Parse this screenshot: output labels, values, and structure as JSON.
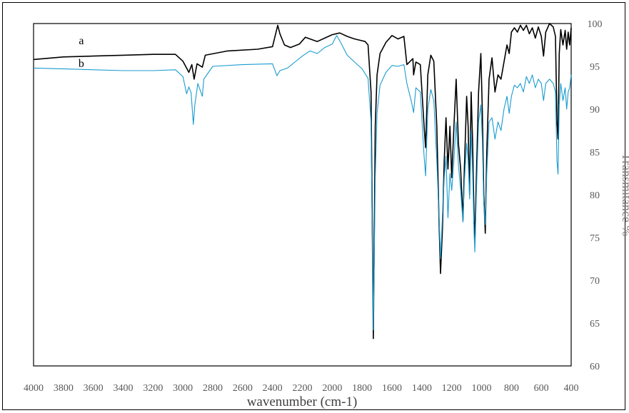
{
  "chart_data": {
    "type": "line",
    "title": "",
    "xlabel": "wavenumber (cm-1)",
    "ylabel": "Transmitance %",
    "xlim": [
      4000,
      400
    ],
    "ylim": [
      60,
      100
    ],
    "x_reversed": true,
    "y_axis_side": "right",
    "x_ticks": [
      4000,
      3800,
      3600,
      3400,
      3200,
      3000,
      2800,
      2600,
      2400,
      2200,
      2000,
      1800,
      1600,
      1400,
      1200,
      1000,
      800,
      600,
      400
    ],
    "y_ticks": [
      60,
      65,
      70,
      75,
      80,
      85,
      90,
      95,
      100
    ],
    "grid": false,
    "series": [
      {
        "name": "a",
        "color": "#000000",
        "points": [
          [
            4000,
            95.8
          ],
          [
            3800,
            96.1
          ],
          [
            3600,
            96.2
          ],
          [
            3400,
            96.3
          ],
          [
            3200,
            96.4
          ],
          [
            3050,
            96.4
          ],
          [
            3000,
            95.6
          ],
          [
            2960,
            94.3
          ],
          [
            2940,
            95.2
          ],
          [
            2925,
            93.5
          ],
          [
            2905,
            95.3
          ],
          [
            2870,
            94.9
          ],
          [
            2850,
            96.3
          ],
          [
            2700,
            96.8
          ],
          [
            2500,
            97.0
          ],
          [
            2400,
            97.3
          ],
          [
            2365,
            99.8
          ],
          [
            2350,
            98.8
          ],
          [
            2320,
            97.5
          ],
          [
            2280,
            97.2
          ],
          [
            2220,
            97.6
          ],
          [
            2180,
            98.4
          ],
          [
            2100,
            97.9
          ],
          [
            2050,
            98.3
          ],
          [
            2000,
            98.7
          ],
          [
            1950,
            98.9
          ],
          [
            1900,
            98.5
          ],
          [
            1850,
            98.2
          ],
          [
            1780,
            97.9
          ],
          [
            1760,
            97.5
          ],
          [
            1740,
            92.0
          ],
          [
            1725,
            63.2
          ],
          [
            1712,
            88.0
          ],
          [
            1700,
            94.0
          ],
          [
            1680,
            96.5
          ],
          [
            1640,
            97.8
          ],
          [
            1600,
            98.6
          ],
          [
            1560,
            98.2
          ],
          [
            1520,
            98.5
          ],
          [
            1500,
            95.2
          ],
          [
            1460,
            95.9
          ],
          [
            1455,
            94.0
          ],
          [
            1440,
            95.5
          ],
          [
            1410,
            95.2
          ],
          [
            1385,
            88.0
          ],
          [
            1375,
            85.5
          ],
          [
            1360,
            94.0
          ],
          [
            1340,
            96.3
          ],
          [
            1320,
            95.6
          ],
          [
            1300,
            88.0
          ],
          [
            1285,
            77.0
          ],
          [
            1275,
            70.8
          ],
          [
            1262,
            76.0
          ],
          [
            1250,
            84.0
          ],
          [
            1238,
            89.0
          ],
          [
            1225,
            83.0
          ],
          [
            1212,
            88.0
          ],
          [
            1200,
            82.0
          ],
          [
            1185,
            88.0
          ],
          [
            1170,
            93.5
          ],
          [
            1155,
            86.0
          ],
          [
            1140,
            83.0
          ],
          [
            1125,
            77.0
          ],
          [
            1115,
            83.0
          ],
          [
            1100,
            91.5
          ],
          [
            1090,
            88.0
          ],
          [
            1080,
            80.0
          ],
          [
            1070,
            92.0
          ],
          [
            1060,
            86.0
          ],
          [
            1050,
            77.0
          ],
          [
            1045,
            74.5
          ],
          [
            1035,
            82.0
          ],
          [
            1020,
            92.0
          ],
          [
            1005,
            96.5
          ],
          [
            995,
            90.0
          ],
          [
            985,
            80.0
          ],
          [
            975,
            75.5
          ],
          [
            965,
            85.0
          ],
          [
            950,
            93.5
          ],
          [
            930,
            96.0
          ],
          [
            910,
            92.0
          ],
          [
            890,
            94.0
          ],
          [
            870,
            93.5
          ],
          [
            850,
            95.5
          ],
          [
            830,
            97.5
          ],
          [
            815,
            96.5
          ],
          [
            800,
            99.0
          ],
          [
            780,
            99.5
          ],
          [
            760,
            99.0
          ],
          [
            740,
            99.8
          ],
          [
            720,
            99.2
          ],
          [
            700,
            99.8
          ],
          [
            680,
            98.8
          ],
          [
            660,
            99.5
          ],
          [
            640,
            98.3
          ],
          [
            620,
            99.6
          ],
          [
            600,
            98.5
          ],
          [
            585,
            96.2
          ],
          [
            570,
            99.0
          ],
          [
            545,
            100.0
          ],
          [
            520,
            99.6
          ],
          [
            505,
            98.5
          ],
          [
            495,
            88.5
          ],
          [
            488,
            86.5
          ],
          [
            480,
            96.5
          ],
          [
            470,
            99.3
          ],
          [
            455,
            97.5
          ],
          [
            440,
            99.2
          ],
          [
            430,
            97.0
          ],
          [
            420,
            99.0
          ],
          [
            410,
            97.5
          ],
          [
            400,
            99.5
          ]
        ]
      },
      {
        "name": "b",
        "color": "#1a9bd0",
        "points": [
          [
            4000,
            94.8
          ],
          [
            3800,
            94.7
          ],
          [
            3600,
            94.6
          ],
          [
            3400,
            94.5
          ],
          [
            3200,
            94.5
          ],
          [
            3050,
            94.6
          ],
          [
            3000,
            93.8
          ],
          [
            2975,
            91.8
          ],
          [
            2960,
            92.6
          ],
          [
            2945,
            91.9
          ],
          [
            2930,
            88.2
          ],
          [
            2920,
            90.5
          ],
          [
            2900,
            93.0
          ],
          [
            2870,
            91.5
          ],
          [
            2860,
            93.5
          ],
          [
            2800,
            95.0
          ],
          [
            2600,
            95.2
          ],
          [
            2400,
            95.3
          ],
          [
            2370,
            93.9
          ],
          [
            2350,
            94.5
          ],
          [
            2300,
            94.8
          ],
          [
            2250,
            95.5
          ],
          [
            2200,
            96.2
          ],
          [
            2150,
            96.8
          ],
          [
            2100,
            96.5
          ],
          [
            2050,
            97.2
          ],
          [
            2000,
            97.6
          ],
          [
            1970,
            98.6
          ],
          [
            1950,
            98.0
          ],
          [
            1900,
            96.3
          ],
          [
            1850,
            95.5
          ],
          [
            1800,
            94.7
          ],
          [
            1760,
            93.6
          ],
          [
            1740,
            88.5
          ],
          [
            1725,
            64.2
          ],
          [
            1712,
            82.0
          ],
          [
            1700,
            89.5
          ],
          [
            1680,
            92.8
          ],
          [
            1640,
            94.3
          ],
          [
            1600,
            95.1
          ],
          [
            1560,
            95.0
          ],
          [
            1520,
            95.2
          ],
          [
            1500,
            93.0
          ],
          [
            1470,
            90.9
          ],
          [
            1455,
            89.6
          ],
          [
            1440,
            92.5
          ],
          [
            1410,
            92.0
          ],
          [
            1385,
            84.5
          ],
          [
            1375,
            82.2
          ],
          [
            1360,
            90.0
          ],
          [
            1340,
            92.3
          ],
          [
            1320,
            91.0
          ],
          [
            1300,
            84.0
          ],
          [
            1285,
            77.5
          ],
          [
            1275,
            72.5
          ],
          [
            1262,
            77.5
          ],
          [
            1250,
            82.0
          ],
          [
            1238,
            84.5
          ],
          [
            1225,
            77.3
          ],
          [
            1212,
            82.5
          ],
          [
            1200,
            80.5
          ],
          [
            1185,
            84.0
          ],
          [
            1170,
            88.5
          ],
          [
            1155,
            83.5
          ],
          [
            1140,
            80.5
          ],
          [
            1125,
            76.8
          ],
          [
            1115,
            81.5
          ],
          [
            1100,
            86.0
          ],
          [
            1090,
            84.0
          ],
          [
            1080,
            79.5
          ],
          [
            1070,
            87.5
          ],
          [
            1060,
            82.5
          ],
          [
            1050,
            75.5
          ],
          [
            1045,
            73.3
          ],
          [
            1035,
            80.0
          ],
          [
            1020,
            88.5
          ],
          [
            1005,
            90.5
          ],
          [
            995,
            86.5
          ],
          [
            985,
            79.0
          ],
          [
            975,
            76.5
          ],
          [
            965,
            82.5
          ],
          [
            950,
            88.5
          ],
          [
            930,
            89.0
          ],
          [
            910,
            86.5
          ],
          [
            890,
            88.5
          ],
          [
            870,
            87.5
          ],
          [
            850,
            90.0
          ],
          [
            830,
            91.5
          ],
          [
            815,
            89.5
          ],
          [
            800,
            91.5
          ],
          [
            780,
            92.8
          ],
          [
            760,
            92.5
          ],
          [
            740,
            93.0
          ],
          [
            720,
            92.0
          ],
          [
            700,
            93.8
          ],
          [
            680,
            93.0
          ],
          [
            660,
            94.0
          ],
          [
            640,
            92.5
          ],
          [
            620,
            93.5
          ],
          [
            600,
            93.0
          ],
          [
            585,
            91.0
          ],
          [
            570,
            93.0
          ],
          [
            545,
            93.5
          ],
          [
            520,
            93.0
          ],
          [
            505,
            92.0
          ],
          [
            495,
            84.0
          ],
          [
            488,
            82.4
          ],
          [
            480,
            90.5
          ],
          [
            470,
            93.0
          ],
          [
            455,
            91.0
          ],
          [
            440,
            92.5
          ],
          [
            430,
            90.0
          ],
          [
            420,
            92.0
          ],
          [
            410,
            92.5
          ],
          [
            400,
            94.0
          ]
        ]
      }
    ],
    "annotations": [
      {
        "text": "a",
        "x": 3680,
        "y": 97.6
      },
      {
        "text": "b",
        "x": 3680,
        "y": 94.9
      }
    ]
  }
}
